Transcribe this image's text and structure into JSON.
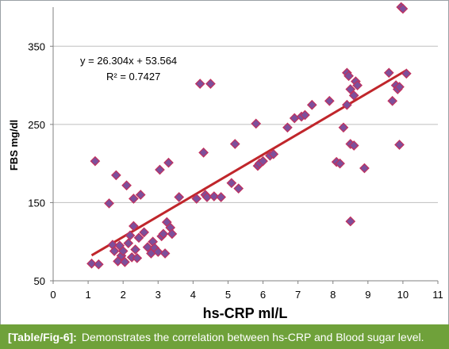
{
  "chart_data": {
    "type": "scatter",
    "xlabel": "hs-CRP ml/L",
    "ylabel": "FBS mg/dl",
    "xlim": [
      0,
      11
    ],
    "ylim": [
      50,
      400
    ],
    "xticks": [
      "0",
      "1",
      "2",
      "3",
      "4",
      "5",
      "6",
      "7",
      "8",
      "9",
      "10",
      "11"
    ],
    "yticks": [
      "50",
      "150",
      "250",
      "350"
    ],
    "grid": "horizontal",
    "equation": "y = 26.304x + 53.564",
    "r_squared": "R² = 0.7427",
    "trendline": {
      "slope": 26.304,
      "intercept": 53.564,
      "x_range": [
        1.1,
        10.1
      ]
    },
    "colors": {
      "marker": "#7d4f9b",
      "marker_stroke": "#c2305d",
      "trendline": "#c0262b",
      "grid": "#bfbfbf"
    },
    "points": [
      [
        1.1,
        72
      ],
      [
        1.2,
        203
      ],
      [
        1.3,
        71
      ],
      [
        1.6,
        149
      ],
      [
        1.7,
        96
      ],
      [
        1.75,
        88
      ],
      [
        1.8,
        185
      ],
      [
        1.85,
        75
      ],
      [
        1.9,
        95
      ],
      [
        1.95,
        82
      ],
      [
        2.0,
        88
      ],
      [
        2.05,
        74
      ],
      [
        2.1,
        172
      ],
      [
        2.15,
        98
      ],
      [
        2.2,
        108
      ],
      [
        2.25,
        80
      ],
      [
        2.3,
        155
      ],
      [
        2.3,
        120
      ],
      [
        2.35,
        90
      ],
      [
        2.4,
        79
      ],
      [
        2.45,
        105
      ],
      [
        2.5,
        160
      ],
      [
        2.6,
        112
      ],
      [
        2.7,
        93
      ],
      [
        2.8,
        85
      ],
      [
        2.85,
        100
      ],
      [
        2.9,
        92
      ],
      [
        3.0,
        87
      ],
      [
        3.05,
        192
      ],
      [
        3.1,
        107
      ],
      [
        3.15,
        110
      ],
      [
        3.2,
        85
      ],
      [
        3.25,
        125
      ],
      [
        3.3,
        201
      ],
      [
        3.35,
        118
      ],
      [
        3.4,
        110
      ],
      [
        3.6,
        157
      ],
      [
        4.1,
        155
      ],
      [
        4.2,
        302
      ],
      [
        4.3,
        214
      ],
      [
        4.35,
        160
      ],
      [
        4.4,
        157
      ],
      [
        4.5,
        302
      ],
      [
        4.6,
        158
      ],
      [
        4.8,
        157
      ],
      [
        5.1,
        175
      ],
      [
        5.2,
        225
      ],
      [
        5.3,
        168
      ],
      [
        5.8,
        251
      ],
      [
        5.85,
        197
      ],
      [
        5.9,
        200
      ],
      [
        6.0,
        203
      ],
      [
        6.2,
        210
      ],
      [
        6.3,
        212
      ],
      [
        6.7,
        246
      ],
      [
        6.9,
        258
      ],
      [
        7.1,
        260
      ],
      [
        7.2,
        262
      ],
      [
        7.4,
        275
      ],
      [
        7.9,
        280
      ],
      [
        8.1,
        202
      ],
      [
        8.2,
        200
      ],
      [
        8.3,
        246
      ],
      [
        8.4,
        275
      ],
      [
        8.4,
        316
      ],
      [
        8.45,
        312
      ],
      [
        8.5,
        295
      ],
      [
        8.5,
        225
      ],
      [
        8.5,
        126
      ],
      [
        8.6,
        223
      ],
      [
        8.6,
        287
      ],
      [
        8.65,
        305
      ],
      [
        8.7,
        300
      ],
      [
        8.9,
        194
      ],
      [
        9.6,
        316
      ],
      [
        9.7,
        280
      ],
      [
        9.8,
        300
      ],
      [
        9.85,
        295
      ],
      [
        9.9,
        298
      ],
      [
        9.9,
        224
      ],
      [
        9.95,
        400
      ],
      [
        10.0,
        398
      ],
      [
        10.1,
        315
      ]
    ]
  },
  "caption": {
    "label": "[Table/Fig-6]:",
    "text": "Demonstrates the correlation between hs-CRP and Blood sugar level."
  }
}
